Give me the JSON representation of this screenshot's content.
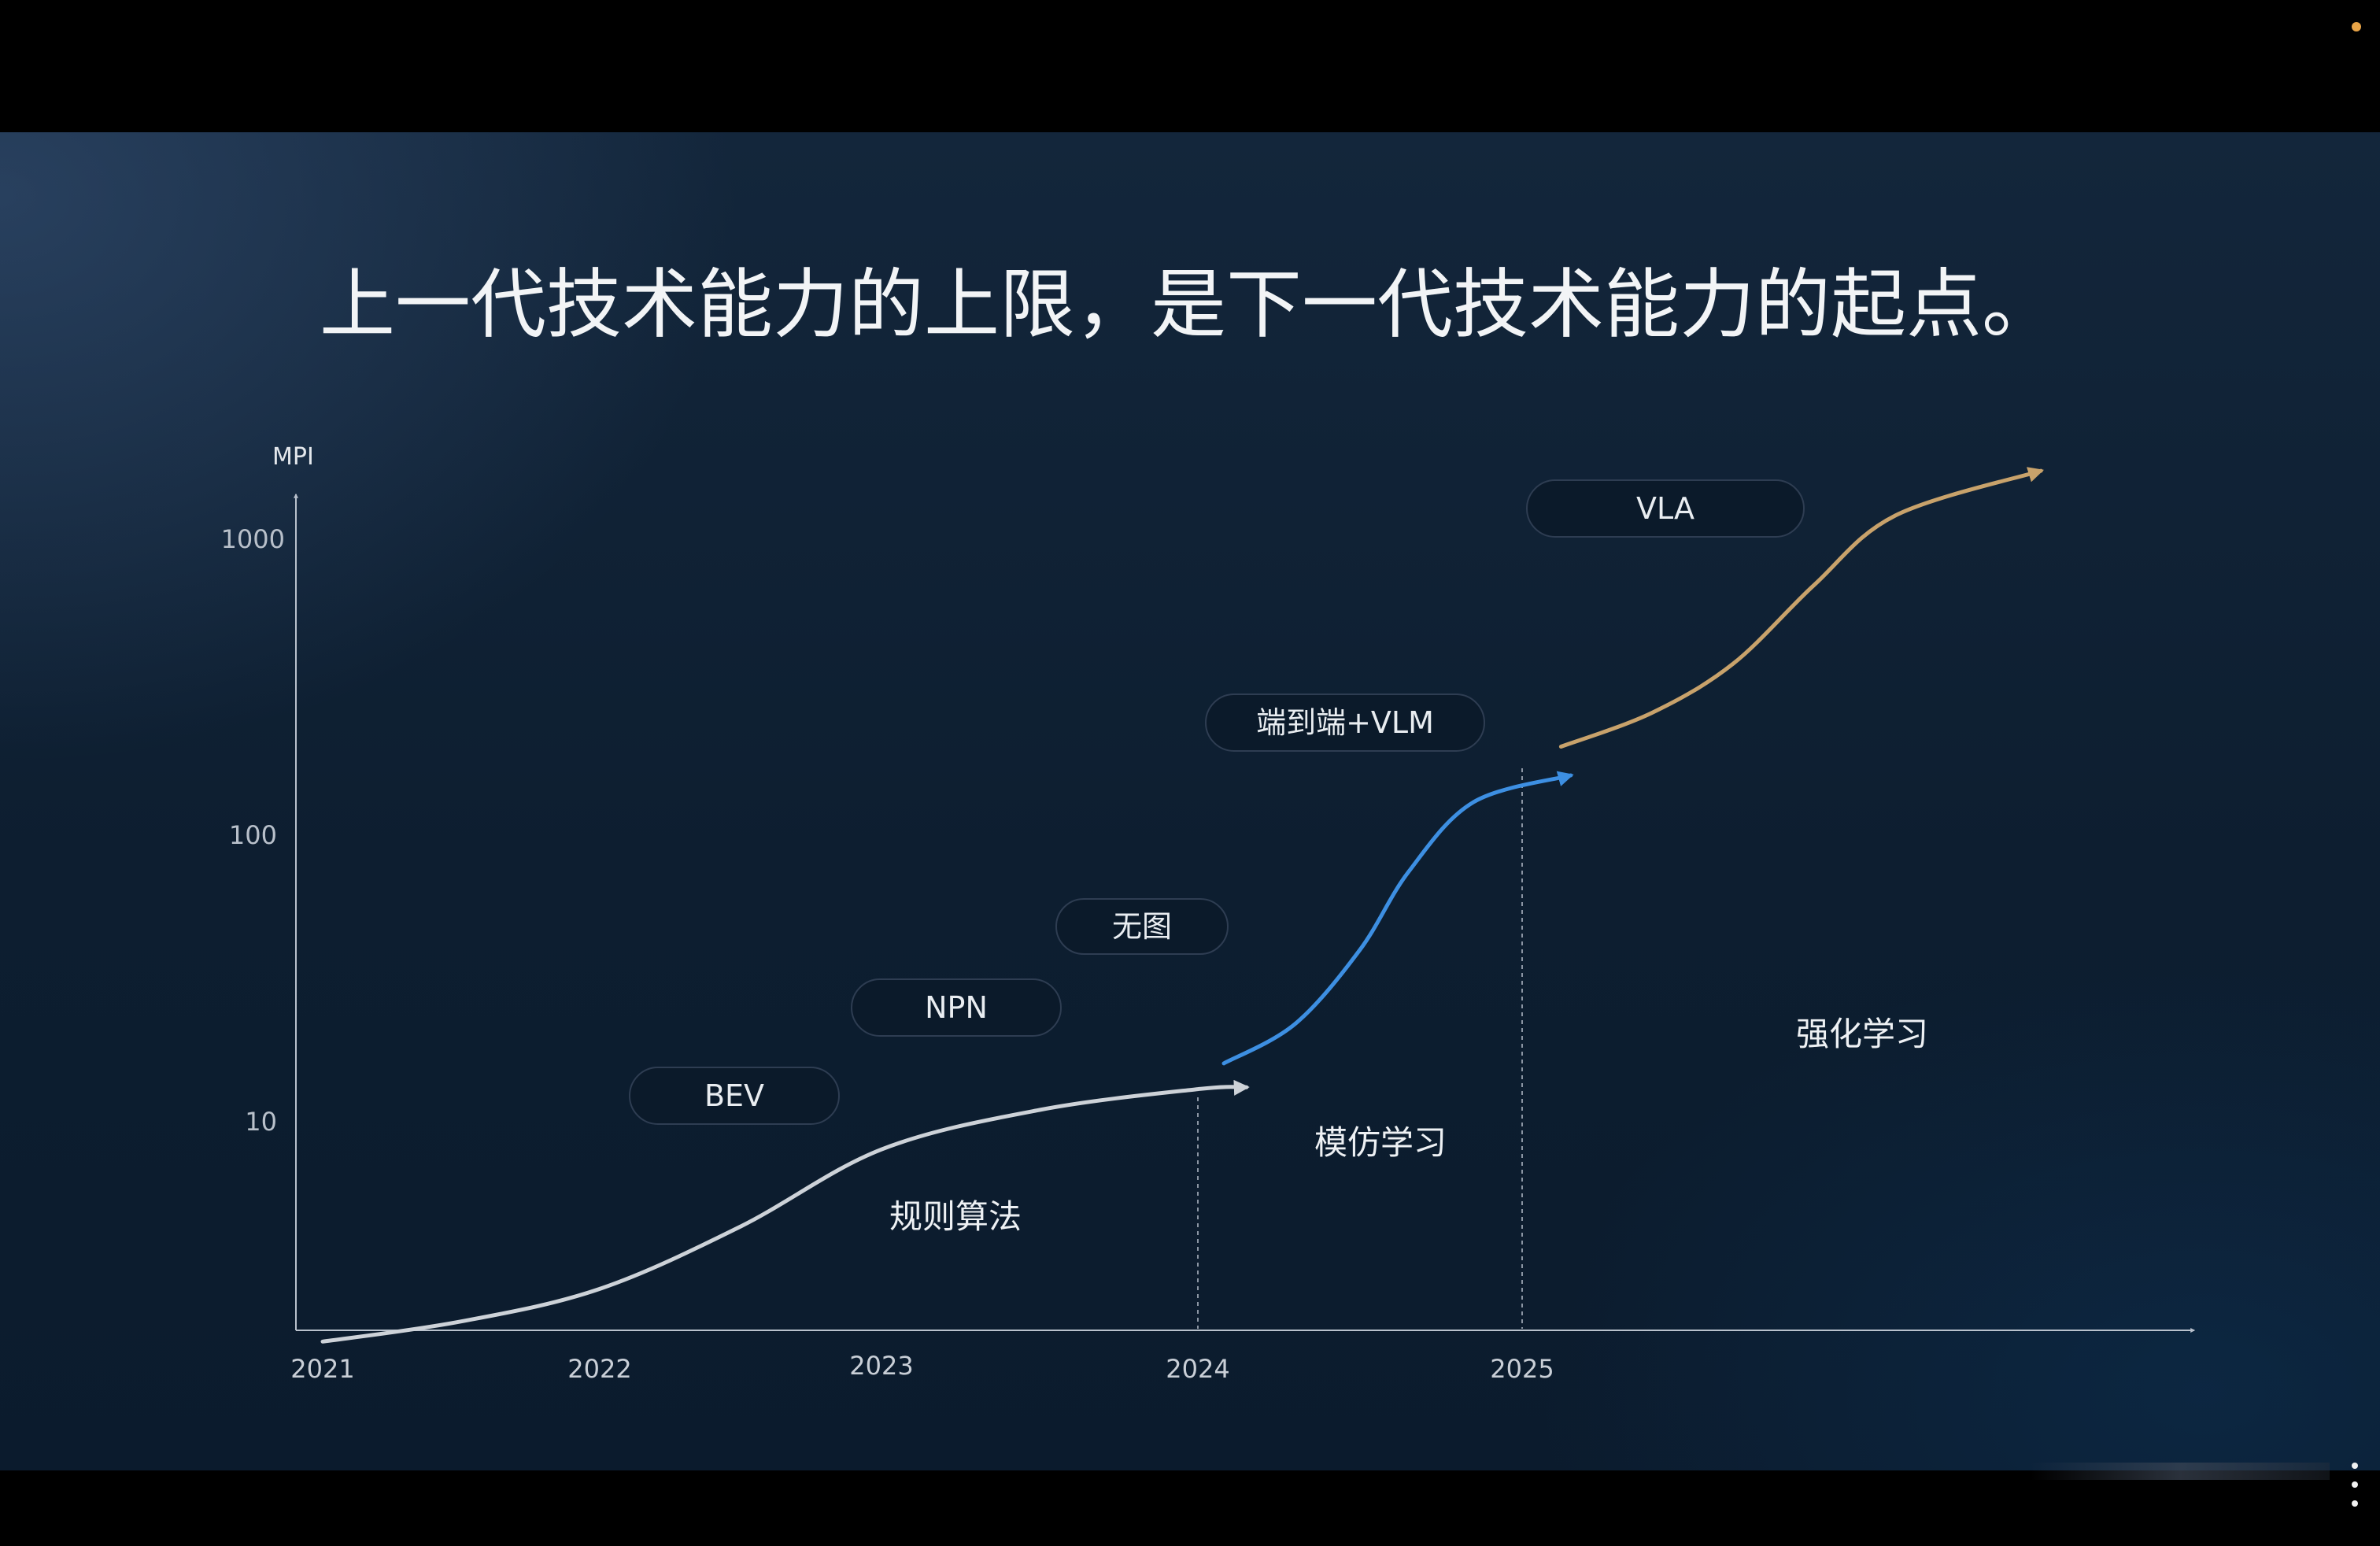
{
  "chart_data": {
    "type": "line",
    "title": "上一代技术能力的上限，是下一代技术能力的起点。",
    "ylabel": "MPI",
    "xlabel": "",
    "yscale": "log",
    "y_ticks": [
      "1000",
      "100",
      "10"
    ],
    "x_ticks": [
      "2021",
      "2022",
      "2023",
      "2024",
      "2025"
    ],
    "grid": false,
    "series": [
      {
        "name": "规则算法",
        "color": "#cdd2d8",
        "x": [
          "2021",
          "2021.5",
          "2022",
          "2022.5",
          "2023",
          "2023.5",
          "2024",
          "2024.15"
        ],
        "y": [
          1.7,
          2.0,
          2.6,
          4.3,
          8.0,
          11.0,
          13.0,
          13.2
        ]
      },
      {
        "name": "模仿学习",
        "color": "#3d8fe2",
        "x": [
          "2024.08",
          "2024.3",
          "2024.5",
          "2024.65",
          "2024.85",
          "2025.15"
        ],
        "y": [
          16.0,
          22.0,
          40.0,
          75.0,
          130.0,
          160.0
        ]
      },
      {
        "name": "强化学习",
        "color": "#c8a26b",
        "x": [
          "2025.12",
          "2025.4",
          "2025.65",
          "2025.9",
          "2026.15",
          "2026.6"
        ],
        "y": [
          200.0,
          260.0,
          380.0,
          700.0,
          1200.0,
          1700.0
        ]
      }
    ],
    "annotations": [
      "BEV",
      "NPN",
      "无图",
      "端到端+VLM",
      "VLA"
    ]
  }
}
